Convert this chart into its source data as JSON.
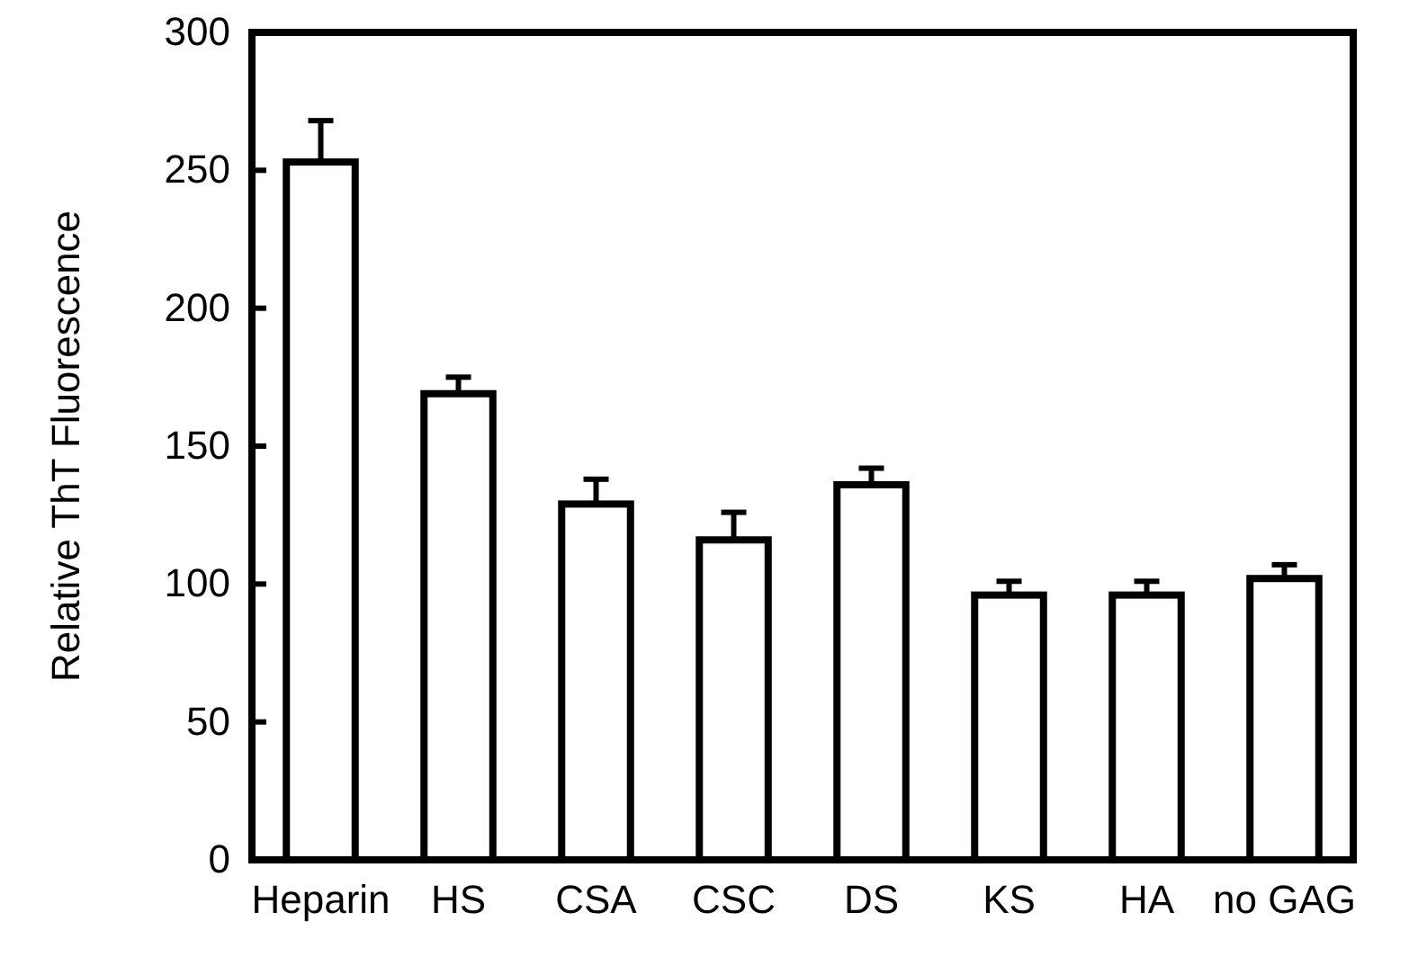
{
  "chart_data": {
    "type": "bar",
    "ylabel": "Relative ThT Fluorescence",
    "categories": [
      "Heparin",
      "HS",
      "CSA",
      "CSC",
      "DS",
      "KS",
      "HA",
      "no GAG"
    ],
    "values": [
      253,
      169,
      129,
      116,
      136,
      96,
      96,
      102
    ],
    "errors": [
      15,
      6,
      9,
      10,
      6,
      5,
      5,
      5
    ],
    "color": "#ffffff",
    "ylim": [
      0,
      300
    ],
    "yticks": [
      0,
      50,
      100,
      150,
      200,
      250,
      300
    ],
    "grid": false
  }
}
